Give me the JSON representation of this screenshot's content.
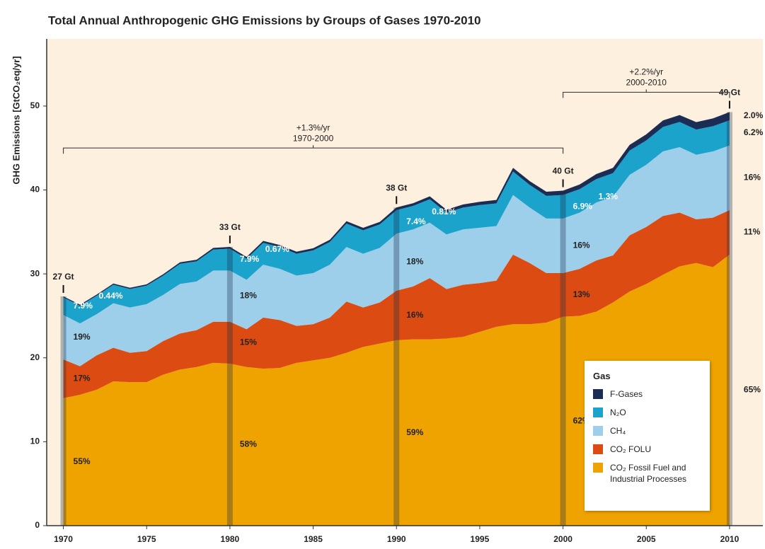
{
  "chart_data": {
    "type": "stacked_area",
    "title": "Total Annual Anthropogenic GHG Emissions by Groups of Gases 1970-2010",
    "y_label": "GHG Emissions [GtCO₂eq/yr]",
    "x": [
      1970,
      1971,
      1972,
      1973,
      1974,
      1975,
      1976,
      1977,
      1978,
      1979,
      1980,
      1981,
      1982,
      1983,
      1984,
      1985,
      1986,
      1987,
      1988,
      1989,
      1990,
      1991,
      1992,
      1993,
      1994,
      1995,
      1996,
      1997,
      1998,
      1999,
      2000,
      2001,
      2002,
      2003,
      2004,
      2005,
      2006,
      2007,
      2008,
      2009,
      2010
    ],
    "series": [
      {
        "name": "CO₂ Fossil Fuel and Industrial Processes",
        "color": "#eea300",
        "values": [
          15.2,
          15.6,
          16.2,
          17.2,
          17.1,
          17.1,
          18.0,
          18.6,
          18.9,
          19.4,
          19.3,
          18.9,
          18.7,
          18.8,
          19.4,
          19.7,
          20.0,
          20.6,
          21.3,
          21.7,
          22.1,
          22.2,
          22.2,
          22.3,
          22.5,
          23.1,
          23.7,
          24.0,
          24.0,
          24.2,
          24.9,
          25.0,
          25.5,
          26.6,
          27.9,
          28.8,
          29.9,
          30.9,
          31.3,
          30.8,
          32.3
        ]
      },
      {
        "name": "CO₂ FOLU",
        "color": "#dc4c12",
        "values": [
          4.6,
          3.4,
          4.1,
          4.0,
          3.5,
          3.7,
          4.0,
          4.3,
          4.4,
          4.9,
          5.0,
          4.5,
          6.1,
          5.7,
          4.4,
          4.3,
          4.8,
          6.1,
          4.7,
          4.9,
          5.9,
          6.3,
          7.3,
          5.9,
          6.2,
          5.8,
          5.5,
          8.3,
          7.3,
          5.9,
          5.2,
          5.6,
          6.1,
          5.6,
          6.7,
          6.8,
          7.0,
          6.4,
          5.2,
          5.9,
          5.3
        ]
      },
      {
        "name": "CH₄",
        "color": "#9dcfea",
        "values": [
          5.3,
          5.1,
          4.9,
          5.3,
          5.4,
          5.6,
          5.5,
          5.9,
          5.8,
          6.1,
          6.1,
          5.9,
          6.3,
          6.1,
          6.0,
          6.1,
          6.3,
          6.5,
          6.4,
          6.5,
          6.8,
          6.8,
          6.6,
          6.5,
          6.6,
          6.6,
          6.5,
          7.1,
          6.6,
          6.5,
          6.5,
          6.7,
          6.9,
          7.0,
          7.2,
          7.4,
          7.7,
          7.8,
          7.7,
          7.9,
          7.7
        ]
      },
      {
        "name": "N₂O",
        "color": "#1ba3cc",
        "values": [
          2.1,
          2.1,
          2.2,
          2.2,
          2.2,
          2.2,
          2.3,
          2.4,
          2.4,
          2.5,
          2.6,
          2.5,
          2.6,
          2.6,
          2.6,
          2.7,
          2.7,
          2.8,
          2.8,
          2.8,
          2.8,
          2.8,
          2.8,
          2.6,
          2.6,
          2.7,
          2.7,
          2.8,
          2.7,
          2.7,
          2.8,
          2.8,
          2.8,
          2.8,
          2.9,
          2.9,
          2.9,
          3.0,
          3.0,
          3.0,
          3.0
        ]
      },
      {
        "name": "F-Gases",
        "color": "#1c2d55",
        "values": [
          0.12,
          0.13,
          0.14,
          0.15,
          0.15,
          0.16,
          0.17,
          0.18,
          0.19,
          0.2,
          0.22,
          0.22,
          0.23,
          0.24,
          0.25,
          0.26,
          0.27,
          0.28,
          0.29,
          0.3,
          0.31,
          0.32,
          0.34,
          0.35,
          0.37,
          0.39,
          0.41,
          0.44,
          0.46,
          0.49,
          0.52,
          0.55,
          0.6,
          0.64,
          0.68,
          0.73,
          0.78,
          0.83,
          0.88,
          0.93,
          0.98
        ]
      }
    ],
    "xlim": [
      1969,
      2012
    ],
    "ylim": [
      0,
      58
    ],
    "xticks": [
      1970,
      1975,
      1980,
      1985,
      1990,
      1995,
      2000,
      2005,
      2010
    ],
    "yticks": [
      0,
      10,
      20,
      30,
      40,
      50
    ],
    "background": "#fdf0df",
    "legend_title": "Gas",
    "legend": "lower right",
    "markers": [
      {
        "year": 1970,
        "label": "27 Gt",
        "shares": [
          "55%",
          "17%",
          "19%",
          "7.9%",
          "0.44%"
        ]
      },
      {
        "year": 1980,
        "label": "33 Gt",
        "shares": [
          "58%",
          "15%",
          "18%",
          "7.9%",
          "0.67%"
        ]
      },
      {
        "year": 1990,
        "label": "38 Gt",
        "shares": [
          "59%",
          "16%",
          "18%",
          "7.4%",
          "0.81%"
        ]
      },
      {
        "year": 2000,
        "label": "40 Gt",
        "shares": [
          "62%",
          "13%",
          "16%",
          "6.9%",
          "1.3%"
        ]
      },
      {
        "year": 2010,
        "label": "49 Gt",
        "shares": [
          "65%",
          "11%",
          "16%",
          "6.2%",
          "2.0%"
        ]
      }
    ],
    "brackets": [
      {
        "from": 1970,
        "to": 2000,
        "label": "+1.3%/yr",
        "sublabel": "1970-2000"
      },
      {
        "from": 2000,
        "to": 2010,
        "label": "+2.2%/yr",
        "sublabel": "2000-2010"
      }
    ]
  }
}
